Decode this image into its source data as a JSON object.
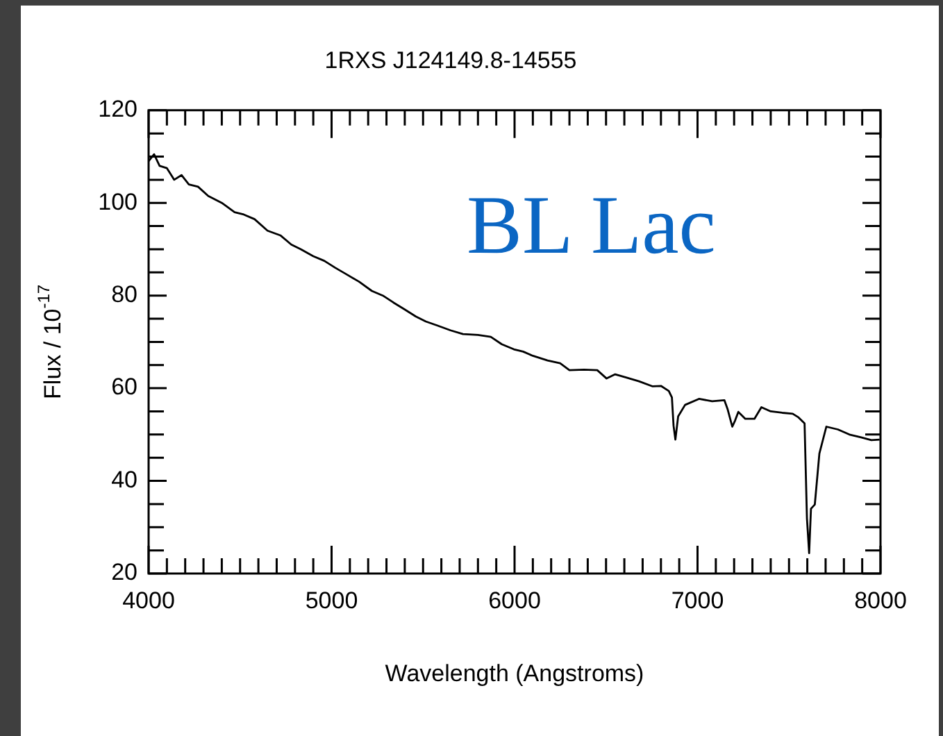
{
  "chart_data": {
    "type": "line",
    "title": "1RXS J124149.8-14555",
    "xlabel": "Wavelength (Angstroms)",
    "ylabel": "Flux / 10$^{-17}$",
    "annotations": [
      "BL Lac"
    ],
    "x": [
      4000,
      4030,
      4060,
      4100,
      4140,
      4180,
      4220,
      4270,
      4326,
      4400,
      4470,
      4520,
      4579,
      4650,
      4720,
      4780,
      4832,
      4900,
      4960,
      5020,
      5085,
      5150,
      5220,
      5280,
      5338,
      5400,
      5460,
      5515,
      5580,
      5650,
      5718,
      5800,
      5870,
      5930,
      5996,
      6047,
      6100,
      6180,
      6249,
      6300,
      6380,
      6452,
      6503,
      6550,
      6603,
      6680,
      6755,
      6800,
      6843,
      6860,
      6869,
      6879,
      6894,
      6932,
      7008,
      7080,
      7147,
      7165,
      7190,
      7205,
      7223,
      7261,
      7311,
      7349,
      7400,
      7463,
      7520,
      7552,
      7585,
      7598,
      7610,
      7620,
      7641,
      7666,
      7704,
      7767,
      7830,
      7894,
      7950,
      7995
    ],
    "series": [
      {
        "color": "#000000",
        "values": [
          109,
          110.5,
          108,
          107.5,
          105,
          106,
          104,
          103.5,
          101.5,
          100,
          98,
          97.5,
          96.5,
          94,
          93,
          91,
          90,
          88.5,
          87.5,
          86,
          84.5,
          83,
          81,
          80,
          78.5,
          77,
          75.5,
          74.4,
          73.5,
          72.5,
          71.7,
          71.5,
          71.1,
          69.5,
          68.4,
          67.9,
          67,
          66,
          65.4,
          63.9,
          64,
          63.9,
          62.1,
          63,
          62.4,
          61.5,
          60.4,
          60.5,
          59.4,
          58,
          51.9,
          48.9,
          53.9,
          56.4,
          57.7,
          57.2,
          57.4,
          55.4,
          51.7,
          53,
          54.9,
          53.4,
          53.4,
          55.9,
          55,
          54.7,
          54.5,
          53.7,
          52.4,
          31.9,
          24.4,
          34,
          34.9,
          45.9,
          51.7,
          51.1,
          50,
          49.4,
          48.8,
          48.9
        ]
      }
    ],
    "xlim": [
      4000,
      8000
    ],
    "xticks": [
      4000,
      {
        "value": 4100,
        "label": null
      },
      {
        "value": 4200,
        "label": null
      },
      {
        "value": 4300,
        "label": null
      },
      {
        "value": 4400,
        "label": null
      },
      {
        "value": 4500,
        "label": null
      },
      {
        "value": 4600,
        "label": null
      },
      {
        "value": 4700,
        "label": null
      },
      {
        "value": 4800,
        "label": null
      },
      {
        "value": 4900,
        "label": null
      },
      5000,
      {
        "value": 5100,
        "label": null
      },
      {
        "value": 5200,
        "label": null
      },
      {
        "value": 5300,
        "label": null
      },
      {
        "value": 5400,
        "label": null
      },
      {
        "value": 5500,
        "label": null
      },
      {
        "value": 5600,
        "label": null
      },
      {
        "value": 5700,
        "label": null
      },
      {
        "value": 5800,
        "label": null
      },
      {
        "value": 5900,
        "label": null
      },
      6000,
      {
        "value": 6100,
        "label": null
      },
      {
        "value": 6200,
        "label": null
      },
      {
        "value": 6300,
        "label": null
      },
      {
        "value": 6400,
        "label": null
      },
      {
        "value": 6500,
        "label": null
      },
      {
        "value": 6600,
        "label": null
      },
      {
        "value": 6700,
        "label": null
      },
      {
        "value": 6800,
        "label": null
      },
      {
        "value": 6900,
        "label": null
      },
      7000,
      {
        "value": 7100,
        "label": null
      },
      {
        "value": 7200,
        "label": null
      },
      {
        "value": 7300,
        "label": null
      },
      {
        "value": 7400,
        "label": null
      },
      {
        "value": 7500,
        "label": null
      },
      {
        "value": 7600,
        "label": null
      },
      {
        "value": 7700,
        "label": null
      },
      {
        "value": 7800,
        "label": null
      },
      {
        "value": 7900,
        "label": null
      },
      8000
    ],
    "ylim": [
      20,
      120
    ],
    "yticks": [
      20,
      {
        "value": 25,
        "label": null
      },
      {
        "value": 30,
        "label": null
      },
      {
        "value": 35,
        "label": null
      },
      40,
      {
        "value": 45,
        "label": null
      },
      {
        "value": 50,
        "label": null
      },
      {
        "value": 55,
        "label": null
      },
      60,
      {
        "value": 65,
        "label": null
      },
      {
        "value": 70,
        "label": null
      },
      {
        "value": 75,
        "label": null
      },
      80,
      {
        "value": 85,
        "label": null
      },
      {
        "value": 90,
        "label": null
      },
      {
        "value": 95,
        "label": null
      },
      100,
      {
        "value": 105,
        "label": null
      },
      {
        "value": 110,
        "label": null
      },
      {
        "value": 115,
        "label": null
      },
      120
    ],
    "marker": "none",
    "line_style": "solid",
    "grid": false,
    "legend": false
  }
}
